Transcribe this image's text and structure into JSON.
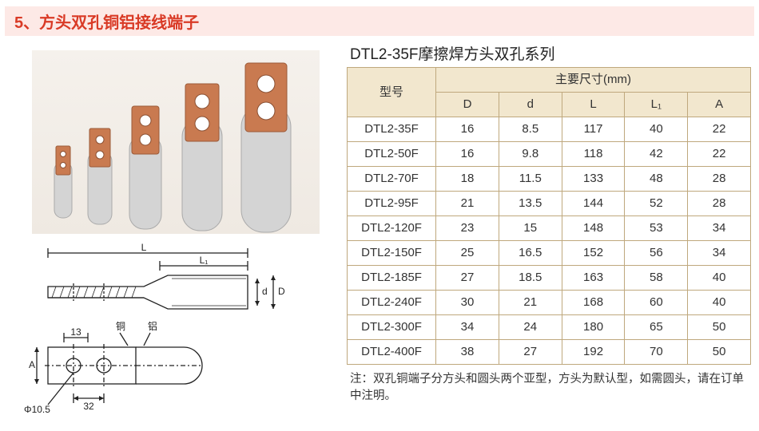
{
  "header": {
    "title": "5、方头双孔铜铝接线端子"
  },
  "table": {
    "title": "DTL2-35F摩擦焊方头双孔系列",
    "header_model": "型号",
    "header_dims": "主要尺寸(mm)",
    "columns": [
      "D",
      "d",
      "L",
      "L₁",
      "A"
    ],
    "rows": [
      {
        "model": "DTL2-35F",
        "D": "16",
        "d": "8.5",
        "L": "117",
        "L1": "40",
        "A": "22"
      },
      {
        "model": "DTL2-50F",
        "D": "16",
        "d": "9.8",
        "L": "118",
        "L1": "42",
        "A": "22"
      },
      {
        "model": "DTL2-70F",
        "D": "18",
        "d": "11.5",
        "L": "133",
        "L1": "48",
        "A": "28"
      },
      {
        "model": "DTL2-95F",
        "D": "21",
        "d": "13.5",
        "L": "144",
        "L1": "52",
        "A": "28"
      },
      {
        "model": "DTL2-120F",
        "D": "23",
        "d": "15",
        "L": "148",
        "L1": "53",
        "A": "34"
      },
      {
        "model": "DTL2-150F",
        "D": "25",
        "d": "16.5",
        "L": "152",
        "L1": "56",
        "A": "34"
      },
      {
        "model": "DTL2-185F",
        "D": "27",
        "d": "18.5",
        "L": "163",
        "L1": "58",
        "A": "40"
      },
      {
        "model": "DTL2-240F",
        "D": "30",
        "d": "21",
        "L": "168",
        "L1": "60",
        "A": "40"
      },
      {
        "model": "DTL2-300F",
        "D": "34",
        "d": "24",
        "L": "180",
        "L1": "65",
        "A": "50"
      },
      {
        "model": "DTL2-400F",
        "D": "38",
        "d": "27",
        "L": "192",
        "L1": "70",
        "A": "50"
      }
    ]
  },
  "note": "注：双孔铜端子分方头和圆头两个亚型，方头为默认型，如需圆头，请在订单中注明。",
  "drawing": {
    "labels": {
      "L": "L",
      "L1": "L₁",
      "d": "d",
      "D": "D",
      "A": "A",
      "cu": "铜",
      "al": "铝"
    },
    "dim13": "13",
    "dim32": "32",
    "dim_hole": "Φ10.5"
  },
  "style": {
    "header_bg": "#fde9e6",
    "header_text": "#d93a26",
    "table_border": "#bfa87d",
    "table_head_bg": "#f2e7ce",
    "copper": "#c97a50",
    "aluminum": "#d4d4d4"
  }
}
